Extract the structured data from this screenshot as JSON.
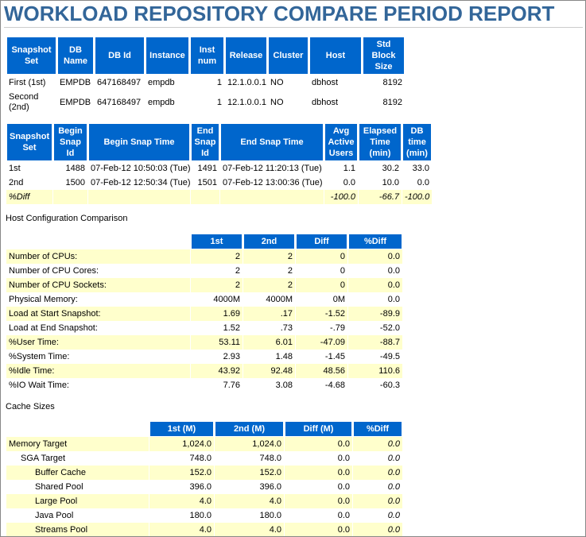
{
  "title": "WORKLOAD REPOSITORY COMPARE PERIOD REPORT",
  "db_table": {
    "headers": [
      "Snapshot Set",
      "DB Name",
      "DB Id",
      "Instance",
      "Inst num",
      "Release",
      "Cluster",
      "Host",
      "Std Block Size"
    ],
    "rows": [
      [
        "First (1st)",
        "EMPDB",
        "647168497",
        "empdb",
        "1",
        "12.1.0.0.1",
        "NO",
        "dbhost",
        "8192"
      ],
      [
        "Second (2nd)",
        "EMPDB",
        "647168497",
        "empdb",
        "1",
        "12.1.0.0.1",
        "NO",
        "dbhost",
        "8192"
      ]
    ]
  },
  "snap_table": {
    "headers": [
      "Snapshot Set",
      "Begin Snap Id",
      "Begin Snap Time",
      "End Snap Id",
      "End Snap Time",
      "Avg Active Users",
      "Elapsed Time (min)",
      "DB time (min)"
    ],
    "rows": [
      [
        "1st",
        "1488",
        "07-Feb-12 10:50:03 (Tue)",
        "1491",
        "07-Feb-12 11:20:13 (Tue)",
        "1.1",
        "30.2",
        "33.0"
      ],
      [
        "2nd",
        "1500",
        "07-Feb-12 12:50:34 (Tue)",
        "1501",
        "07-Feb-12 13:00:36 (Tue)",
        "0.0",
        "10.0",
        "0.0"
      ],
      [
        "%Diff",
        null,
        null,
        null,
        null,
        "-100.0",
        "-66.7",
        "-100.0"
      ]
    ]
  },
  "host_section": {
    "title": "Host Configuration Comparison",
    "headers": [
      "1st",
      "2nd",
      "Diff",
      "%Diff"
    ],
    "rows": [
      [
        "Number of CPUs:",
        "2",
        "2",
        "0",
        "0.0"
      ],
      [
        "Number of CPU Cores:",
        "2",
        "2",
        "0",
        "0.0"
      ],
      [
        "Number of CPU Sockets:",
        "2",
        "2",
        "0",
        "0.0"
      ],
      [
        "Physical Memory:",
        "4000M",
        "4000M",
        "0M",
        "0.0"
      ],
      [
        "Load at Start Snapshot:",
        "1.69",
        ".17",
        "-1.52",
        "-89.9"
      ],
      [
        "Load at End Snapshot:",
        "1.52",
        ".73",
        "-.79",
        "-52.0"
      ],
      [
        "%User Time:",
        "53.11",
        "6.01",
        "-47.09",
        "-88.7"
      ],
      [
        "%System Time:",
        "2.93",
        "1.48",
        "-1.45",
        "-49.5"
      ],
      [
        "%Idle Time:",
        "43.92",
        "92.48",
        "48.56",
        "110.6"
      ],
      [
        "%IO Wait Time:",
        "7.76",
        "3.08",
        "-4.68",
        "-60.3"
      ]
    ]
  },
  "cache_section": {
    "title": "Cache Sizes",
    "headers": [
      "1st (M)",
      "2nd (M)",
      "Diff (M)",
      "%Diff"
    ],
    "rows": [
      [
        "Memory Target",
        "1,024.0",
        "1,024.0",
        "0.0",
        "0.0"
      ],
      [
        "SGA Target",
        "748.0",
        "748.0",
        "0.0",
        "0.0"
      ],
      [
        "Buffer Cache",
        "152.0",
        "152.0",
        "0.0",
        "0.0"
      ],
      [
        "Shared Pool",
        "396.0",
        "396.0",
        "0.0",
        "0.0"
      ],
      [
        "Large Pool",
        "4.0",
        "4.0",
        "0.0",
        "0.0"
      ],
      [
        "Java Pool",
        "180.0",
        "180.0",
        "0.0",
        "0.0"
      ],
      [
        "Streams Pool",
        "4.0",
        "4.0",
        "0.0",
        "0.0"
      ]
    ]
  }
}
